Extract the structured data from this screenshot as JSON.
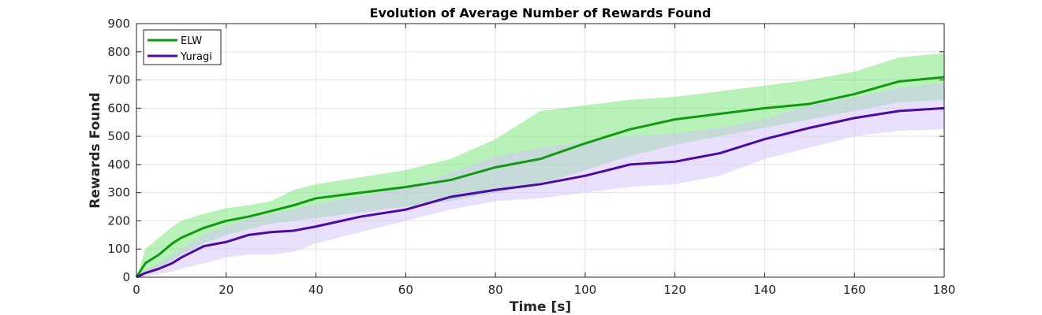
{
  "chart_data": {
    "type": "line",
    "title": "Evolution of Average Number of Rewards Found",
    "xlabel": "Time [s]",
    "ylabel": "Rewards Found",
    "xlim": [
      0,
      180
    ],
    "ylim": [
      0,
      900
    ],
    "xticks": [
      0,
      20,
      40,
      60,
      80,
      100,
      120,
      140,
      160,
      180
    ],
    "yticks": [
      0,
      100,
      200,
      300,
      400,
      500,
      600,
      700,
      800,
      900
    ],
    "grid": true,
    "legend_position": "top-left",
    "x": [
      0,
      2,
      5,
      8,
      10,
      15,
      20,
      25,
      30,
      35,
      40,
      50,
      60,
      70,
      80,
      90,
      100,
      110,
      120,
      130,
      140,
      150,
      160,
      170,
      180
    ],
    "series": [
      {
        "name": "ELW",
        "color": "#119911",
        "band_color": "#7ee87e",
        "values": [
          0,
          50,
          80,
          120,
          140,
          175,
          200,
          215,
          235,
          255,
          280,
          300,
          320,
          345,
          390,
          420,
          475,
          525,
          560,
          580,
          600,
          615,
          650,
          695,
          710
        ],
        "lower": [
          0,
          10,
          30,
          60,
          80,
          120,
          150,
          170,
          190,
          200,
          210,
          230,
          250,
          270,
          300,
          330,
          380,
          430,
          470,
          500,
          530,
          560,
          590,
          620,
          630
        ],
        "upper": [
          0,
          100,
          140,
          180,
          200,
          225,
          245,
          255,
          270,
          310,
          330,
          355,
          380,
          420,
          490,
          590,
          610,
          630,
          640,
          660,
          680,
          700,
          730,
          780,
          795
        ]
      },
      {
        "name": "Yuragi",
        "color": "#4b0aa6",
        "band_color": "#d4c2fb",
        "values": [
          0,
          15,
          30,
          50,
          70,
          110,
          125,
          150,
          160,
          165,
          180,
          215,
          240,
          285,
          310,
          330,
          360,
          400,
          410,
          440,
          490,
          530,
          565,
          590,
          600
        ],
        "lower": [
          0,
          5,
          10,
          20,
          30,
          50,
          70,
          80,
          80,
          90,
          120,
          160,
          200,
          240,
          270,
          280,
          300,
          320,
          330,
          360,
          420,
          460,
          500,
          520,
          525
        ],
        "upper": [
          0,
          25,
          50,
          80,
          100,
          150,
          180,
          210,
          225,
          240,
          260,
          290,
          320,
          370,
          430,
          460,
          480,
          500,
          510,
          530,
          560,
          610,
          640,
          670,
          690
        ]
      }
    ]
  }
}
